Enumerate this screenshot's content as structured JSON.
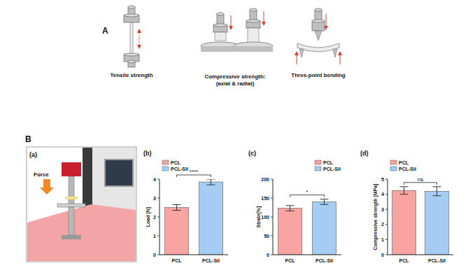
{
  "chart_data": [
    {
      "type": "bar",
      "panel": "(b)",
      "y_label": "Load [N]",
      "categories": [
        "PCL",
        "PCL-Sil"
      ],
      "series": [
        {
          "name": "PCL",
          "color": "#f7a4a2",
          "values": [
            2.5,
            null
          ],
          "errors": [
            0.15,
            null
          ]
        },
        {
          "name": "PCL-Sil",
          "color": "#a5cdf4",
          "values": [
            null,
            3.85
          ],
          "errors": [
            null,
            0.15
          ]
        }
      ],
      "ylim": [
        0,
        4
      ],
      "yticks": [
        0,
        1,
        2,
        3,
        4
      ],
      "grid": false,
      "legend": "top-left",
      "annotations": [
        "****"
      ]
    },
    {
      "type": "bar",
      "panel": "(c)",
      "y_label": "Strain[%]",
      "categories": [
        "PCL",
        "PCL-Sil"
      ],
      "series": [
        {
          "name": "PCL",
          "color": "#f7a4a2",
          "values": [
            123,
            null
          ],
          "errors": [
            7,
            null
          ]
        },
        {
          "name": "PCL-Sil",
          "color": "#a5cdf4",
          "values": [
            null,
            140
          ],
          "errors": [
            null,
            7
          ]
        }
      ],
      "ylim": [
        0,
        200
      ],
      "yticks": [
        0,
        50,
        100,
        150,
        200
      ],
      "grid": false,
      "legend": "top-right",
      "annotations": [
        "*"
      ]
    },
    {
      "type": "bar",
      "panel": "(d)",
      "y_label": "Compressive strength [MPa]",
      "categories": [
        "PCL",
        "PCL-Sil"
      ],
      "series": [
        {
          "name": "PCL",
          "color": "#f7a4a2",
          "values": [
            4.25,
            null
          ],
          "errors": [
            0.25,
            null
          ]
        },
        {
          "name": "PCL-Sil",
          "color": "#a5cdf4",
          "values": [
            null,
            4.2
          ],
          "errors": [
            null,
            0.3
          ]
        }
      ],
      "ylim": [
        0,
        5
      ],
      "yticks": [
        0,
        1,
        2,
        3,
        4,
        5
      ],
      "grid": false,
      "legend": "top-left",
      "annotations": [
        "ns"
      ]
    }
  ],
  "diagram": {
    "panel_a": "A",
    "panel_b": "B",
    "tests": [
      "Tensile strength",
      "Compressive strength:",
      "(axial & radial)",
      "Three-point bending"
    ],
    "setup_label": "(a)",
    "force_label": "Force"
  }
}
